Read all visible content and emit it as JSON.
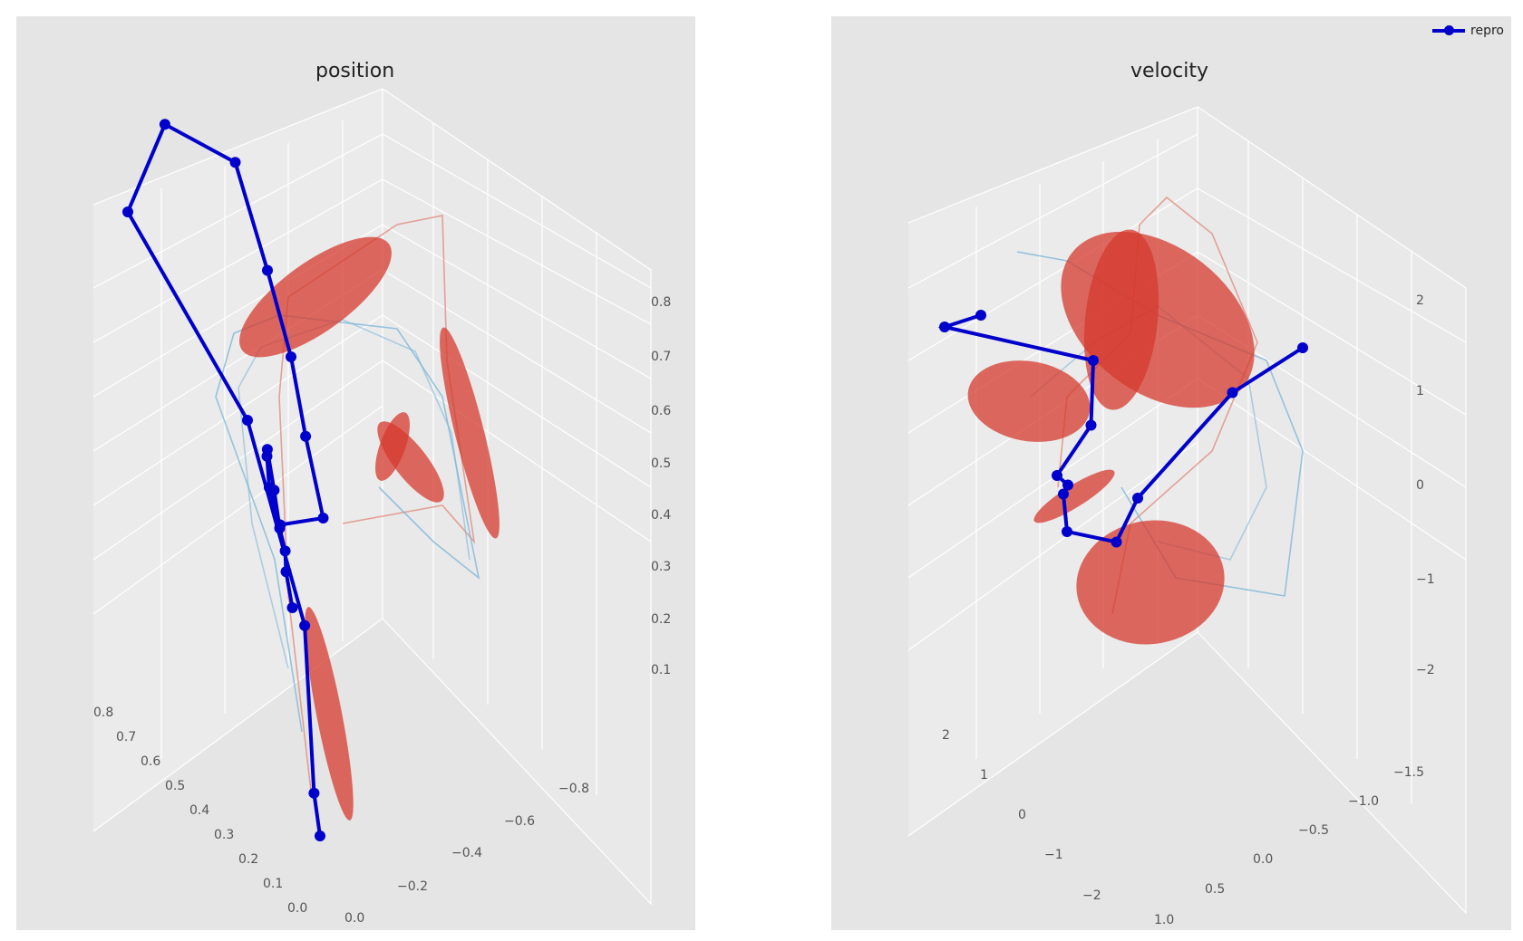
{
  "colors": {
    "trajectory": "#0000cc",
    "ellipsoid": "#d63a2e",
    "demo_red": "#e08070",
    "demo_blue": "#80b8d8",
    "panel_bg": "#e5e5e5"
  },
  "chart_data": [
    {
      "type": "line",
      "title": "position",
      "projection": "3d",
      "grid": true,
      "z_ticks": [
        "0.1",
        "0.2",
        "0.3",
        "0.4",
        "0.5",
        "0.6",
        "0.7",
        "0.8"
      ],
      "x_ticks": [
        "0.0",
        "0.1",
        "0.2",
        "0.3",
        "0.4",
        "0.5",
        "0.6",
        "0.7",
        "0.8"
      ],
      "y_ticks": [
        "0.0",
        "−0.2",
        "−0.4",
        "−0.6",
        "−0.8"
      ],
      "series": [
        {
          "name": "repro",
          "points": [
            [
              0.0,
              0.0,
              0.1
            ],
            [
              0.02,
              0.0,
              0.15
            ],
            [
              0.08,
              -0.05,
              0.35
            ],
            [
              0.3,
              -0.1,
              0.55
            ],
            [
              0.7,
              -0.1,
              0.7
            ],
            [
              0.72,
              -0.35,
              0.8
            ],
            [
              0.6,
              -0.55,
              0.78
            ],
            [
              0.55,
              -0.65,
              0.65
            ],
            [
              0.5,
              -0.7,
              0.55
            ],
            [
              0.48,
              -0.75,
              0.45
            ],
            [
              0.45,
              -0.8,
              0.35
            ],
            [
              0.45,
              -0.55,
              0.35
            ],
            [
              0.4,
              -0.4,
              0.42
            ],
            [
              0.35,
              -0.3,
              0.48
            ],
            [
              0.32,
              -0.25,
              0.5
            ],
            [
              0.28,
              -0.22,
              0.46
            ],
            [
              0.25,
              -0.2,
              0.42
            ],
            [
              0.22,
              -0.18,
              0.4
            ],
            [
              0.2,
              -0.15,
              0.38
            ],
            [
              0.15,
              -0.1,
              0.35
            ]
          ]
        }
      ]
    },
    {
      "type": "line",
      "title": "velocity",
      "projection": "3d",
      "grid": true,
      "legend": {
        "position": "top-right",
        "entries": [
          "repro"
        ]
      },
      "z_ticks": [
        "−2",
        "−1",
        "0",
        "1",
        "2"
      ],
      "x_ticks": [
        "−2",
        "−1",
        "0",
        "1",
        "2"
      ],
      "y_ticks": [
        "1.0",
        "0.5",
        "0.0",
        "−0.5",
        "−1.0",
        "−1.5"
      ],
      "series": [
        {
          "name": "repro",
          "points": [
            [
              1.8,
              0.2,
              1.8
            ],
            [
              2.0,
              0.5,
              1.6
            ],
            [
              1.0,
              -0.6,
              1.4
            ],
            [
              0.9,
              -0.5,
              0.6
            ],
            [
              1.2,
              -0.3,
              0.0
            ],
            [
              0.6,
              0.0,
              -0.3
            ],
            [
              0.4,
              0.2,
              -0.5
            ],
            [
              0.2,
              0.3,
              -1.0
            ],
            [
              -0.5,
              0.2,
              -1.2
            ],
            [
              -1.0,
              0.3,
              -0.8
            ],
            [
              -1.5,
              -0.5,
              0.6
            ],
            [
              -2.0,
              -1.0,
              1.2
            ]
          ]
        }
      ]
    }
  ]
}
